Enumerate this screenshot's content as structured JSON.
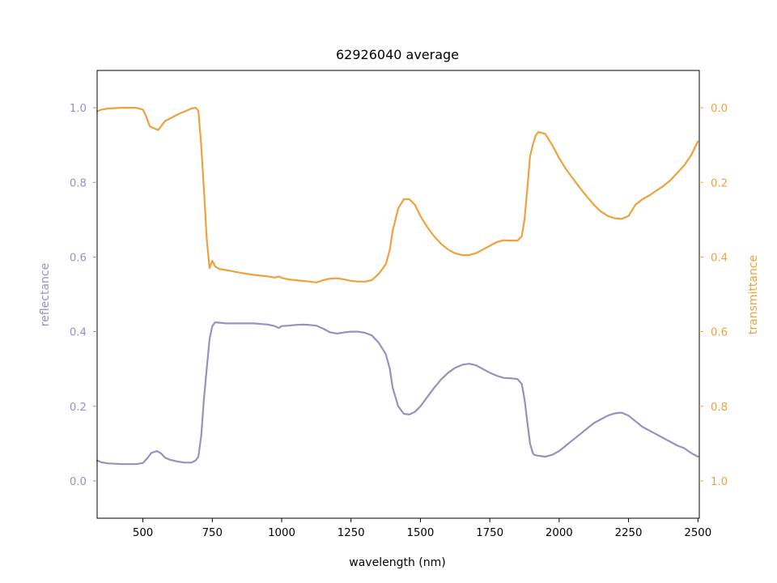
{
  "chart_data": {
    "type": "line",
    "title": "62926040 average",
    "xlabel": "wavelength (nm)",
    "x_ticks": [
      500,
      750,
      1000,
      1250,
      1500,
      1750,
      2000,
      2250,
      2500
    ],
    "xlim": [
      335,
      2505
    ],
    "grid": false,
    "legend": "none",
    "axes": {
      "left": {
        "label": "reflectance",
        "color": "#9990c0",
        "ylim": [
          -0.1,
          1.1
        ],
        "ticks": [
          "0.0",
          "0.2",
          "0.4",
          "0.6",
          "0.8",
          "1.0"
        ],
        "tick_values": [
          0.0,
          0.2,
          0.4,
          0.6,
          0.8,
          1.0
        ]
      },
      "right": {
        "label": "transmittance",
        "color": "#eea23e",
        "ylim": [
          1.1,
          -0.1
        ],
        "inverted": true,
        "ticks": [
          "0.0",
          "0.2",
          "0.4",
          "0.6",
          "0.8",
          "1.0"
        ],
        "tick_values": [
          0.0,
          0.2,
          0.4,
          0.6,
          0.8,
          1.0
        ]
      }
    },
    "series": [
      {
        "axis": "left",
        "color": "#9990c0",
        "points": [
          [
            335,
            0.055
          ],
          [
            350,
            0.05
          ],
          [
            375,
            0.047
          ],
          [
            400,
            0.046
          ],
          [
            425,
            0.045
          ],
          [
            450,
            0.045
          ],
          [
            475,
            0.045
          ],
          [
            500,
            0.048
          ],
          [
            515,
            0.06
          ],
          [
            530,
            0.075
          ],
          [
            550,
            0.08
          ],
          [
            565,
            0.074
          ],
          [
            580,
            0.062
          ],
          [
            600,
            0.056
          ],
          [
            625,
            0.052
          ],
          [
            650,
            0.049
          ],
          [
            675,
            0.049
          ],
          [
            690,
            0.055
          ],
          [
            700,
            0.065
          ],
          [
            710,
            0.12
          ],
          [
            720,
            0.22
          ],
          [
            730,
            0.3
          ],
          [
            740,
            0.38
          ],
          [
            750,
            0.415
          ],
          [
            760,
            0.425
          ],
          [
            775,
            0.424
          ],
          [
            800,
            0.422
          ],
          [
            850,
            0.422
          ],
          [
            900,
            0.422
          ],
          [
            950,
            0.419
          ],
          [
            975,
            0.415
          ],
          [
            990,
            0.41
          ],
          [
            1000,
            0.415
          ],
          [
            1025,
            0.416
          ],
          [
            1050,
            0.418
          ],
          [
            1075,
            0.419
          ],
          [
            1100,
            0.418
          ],
          [
            1125,
            0.416
          ],
          [
            1150,
            0.408
          ],
          [
            1175,
            0.398
          ],
          [
            1200,
            0.395
          ],
          [
            1225,
            0.398
          ],
          [
            1250,
            0.4
          ],
          [
            1275,
            0.4
          ],
          [
            1300,
            0.397
          ],
          [
            1325,
            0.39
          ],
          [
            1350,
            0.37
          ],
          [
            1375,
            0.34
          ],
          [
            1390,
            0.3
          ],
          [
            1400,
            0.25
          ],
          [
            1420,
            0.2
          ],
          [
            1440,
            0.18
          ],
          [
            1460,
            0.178
          ],
          [
            1480,
            0.185
          ],
          [
            1500,
            0.2
          ],
          [
            1525,
            0.225
          ],
          [
            1550,
            0.25
          ],
          [
            1575,
            0.272
          ],
          [
            1600,
            0.29
          ],
          [
            1625,
            0.303
          ],
          [
            1650,
            0.311
          ],
          [
            1675,
            0.314
          ],
          [
            1700,
            0.31
          ],
          [
            1725,
            0.3
          ],
          [
            1750,
            0.29
          ],
          [
            1775,
            0.282
          ],
          [
            1800,
            0.276
          ],
          [
            1825,
            0.275
          ],
          [
            1850,
            0.273
          ],
          [
            1865,
            0.26
          ],
          [
            1875,
            0.22
          ],
          [
            1885,
            0.16
          ],
          [
            1895,
            0.1
          ],
          [
            1905,
            0.075
          ],
          [
            1910,
            0.07
          ],
          [
            1920,
            0.068
          ],
          [
            1950,
            0.065
          ],
          [
            1975,
            0.07
          ],
          [
            2000,
            0.08
          ],
          [
            2025,
            0.095
          ],
          [
            2050,
            0.11
          ],
          [
            2075,
            0.125
          ],
          [
            2100,
            0.14
          ],
          [
            2125,
            0.155
          ],
          [
            2150,
            0.165
          ],
          [
            2175,
            0.175
          ],
          [
            2200,
            0.181
          ],
          [
            2225,
            0.183
          ],
          [
            2250,
            0.175
          ],
          [
            2275,
            0.16
          ],
          [
            2300,
            0.145
          ],
          [
            2325,
            0.135
          ],
          [
            2350,
            0.125
          ],
          [
            2375,
            0.115
          ],
          [
            2400,
            0.105
          ],
          [
            2425,
            0.095
          ],
          [
            2450,
            0.088
          ],
          [
            2475,
            0.075
          ],
          [
            2500,
            0.065
          ]
        ]
      },
      {
        "axis": "right",
        "color": "#eea23e",
        "points": [
          [
            335,
            0.01
          ],
          [
            350,
            0.005
          ],
          [
            375,
            0.002
          ],
          [
            400,
            0.001
          ],
          [
            425,
            0.0
          ],
          [
            450,
            0.0
          ],
          [
            475,
            0.0
          ],
          [
            500,
            0.005
          ],
          [
            510,
            0.02
          ],
          [
            525,
            0.05
          ],
          [
            540,
            0.055
          ],
          [
            555,
            0.06
          ],
          [
            565,
            0.05
          ],
          [
            580,
            0.035
          ],
          [
            600,
            0.028
          ],
          [
            625,
            0.018
          ],
          [
            650,
            0.01
          ],
          [
            675,
            0.002
          ],
          [
            690,
            0.0
          ],
          [
            700,
            0.008
          ],
          [
            710,
            0.1
          ],
          [
            720,
            0.22
          ],
          [
            730,
            0.35
          ],
          [
            740,
            0.43
          ],
          [
            750,
            0.41
          ],
          [
            760,
            0.425
          ],
          [
            775,
            0.432
          ],
          [
            800,
            0.435
          ],
          [
            850,
            0.442
          ],
          [
            900,
            0.448
          ],
          [
            950,
            0.452
          ],
          [
            975,
            0.455
          ],
          [
            990,
            0.452
          ],
          [
            1000,
            0.456
          ],
          [
            1025,
            0.46
          ],
          [
            1050,
            0.462
          ],
          [
            1075,
            0.464
          ],
          [
            1100,
            0.466
          ],
          [
            1125,
            0.468
          ],
          [
            1150,
            0.462
          ],
          [
            1175,
            0.458
          ],
          [
            1200,
            0.457
          ],
          [
            1225,
            0.46
          ],
          [
            1250,
            0.464
          ],
          [
            1275,
            0.466
          ],
          [
            1300,
            0.466
          ],
          [
            1325,
            0.462
          ],
          [
            1350,
            0.445
          ],
          [
            1375,
            0.42
          ],
          [
            1390,
            0.38
          ],
          [
            1400,
            0.33
          ],
          [
            1420,
            0.27
          ],
          [
            1440,
            0.245
          ],
          [
            1460,
            0.245
          ],
          [
            1480,
            0.26
          ],
          [
            1500,
            0.29
          ],
          [
            1525,
            0.32
          ],
          [
            1550,
            0.345
          ],
          [
            1575,
            0.365
          ],
          [
            1600,
            0.38
          ],
          [
            1625,
            0.39
          ],
          [
            1650,
            0.395
          ],
          [
            1675,
            0.395
          ],
          [
            1700,
            0.39
          ],
          [
            1725,
            0.38
          ],
          [
            1750,
            0.37
          ],
          [
            1775,
            0.36
          ],
          [
            1800,
            0.355
          ],
          [
            1825,
            0.356
          ],
          [
            1850,
            0.356
          ],
          [
            1865,
            0.345
          ],
          [
            1875,
            0.3
          ],
          [
            1885,
            0.22
          ],
          [
            1895,
            0.13
          ],
          [
            1905,
            0.1
          ],
          [
            1915,
            0.075
          ],
          [
            1925,
            0.065
          ],
          [
            1950,
            0.07
          ],
          [
            1975,
            0.1
          ],
          [
            2000,
            0.135
          ],
          [
            2025,
            0.165
          ],
          [
            2050,
            0.19
          ],
          [
            2075,
            0.215
          ],
          [
            2100,
            0.238
          ],
          [
            2125,
            0.26
          ],
          [
            2150,
            0.278
          ],
          [
            2175,
            0.29
          ],
          [
            2200,
            0.296
          ],
          [
            2225,
            0.298
          ],
          [
            2250,
            0.29
          ],
          [
            2275,
            0.26
          ],
          [
            2300,
            0.245
          ],
          [
            2325,
            0.235
          ],
          [
            2350,
            0.222
          ],
          [
            2375,
            0.21
          ],
          [
            2400,
            0.195
          ],
          [
            2425,
            0.175
          ],
          [
            2450,
            0.155
          ],
          [
            2475,
            0.128
          ],
          [
            2500,
            0.09
          ]
        ]
      }
    ]
  }
}
